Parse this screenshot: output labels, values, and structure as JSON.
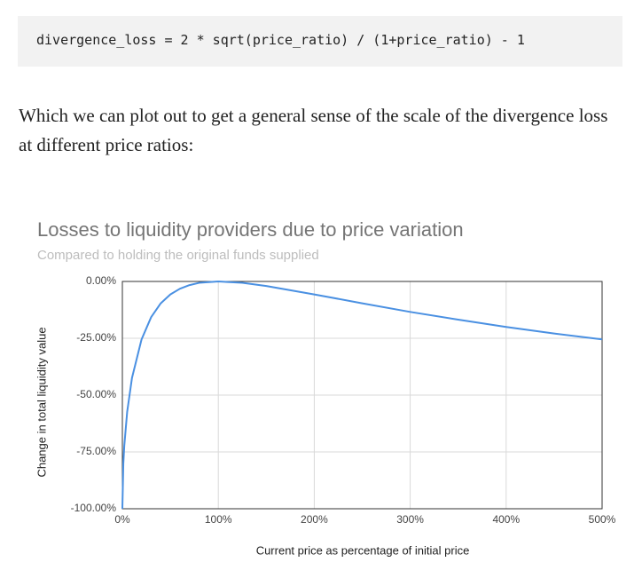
{
  "code": "divergence_loss = 2 * sqrt(price_ratio) / (1+price_ratio) - 1",
  "paragraph": "Which we can plot out to get a general sense of the scale of the divergence loss at different price ratios:",
  "chart_data": {
    "type": "line",
    "title": "Losses to liquidity providers due to price variation",
    "subtitle": "Compared to holding the original funds supplied",
    "x_label": "Current price as percentage of initial price",
    "y_label": "Change in total liquidity value",
    "x": [
      0,
      1,
      2,
      5,
      10,
      20,
      30,
      40,
      50,
      60,
      70,
      80,
      100,
      125,
      150,
      200,
      250,
      300,
      350,
      400,
      450,
      500
    ],
    "values": [
      -100,
      -80.2,
      -72.3,
      -57.4,
      -42.5,
      -25.5,
      -15.7,
      -9.6,
      -5.7,
      -3.2,
      -1.6,
      -0.6,
      0,
      -0.6,
      -2.0,
      -5.7,
      -9.6,
      -13.4,
      -16.8,
      -20,
      -22.9,
      -25.5
    ],
    "color": "#4a90e2",
    "xlim": [
      0,
      500
    ],
    "xticks": [
      {
        "value": 0,
        "label": "0%"
      },
      {
        "value": 100,
        "label": "100%"
      },
      {
        "value": 200,
        "label": "200%"
      },
      {
        "value": 300,
        "label": "300%"
      },
      {
        "value": 400,
        "label": "400%"
      },
      {
        "value": 500,
        "label": "500%"
      }
    ],
    "ylim": [
      -100,
      0
    ],
    "yticks": [
      {
        "value": -100,
        "label": "-100.00%"
      },
      {
        "value": -75,
        "label": "-75.00%"
      },
      {
        "value": -50,
        "label": "-50.00%"
      },
      {
        "value": -25,
        "label": "-25.00%"
      },
      {
        "value": 0,
        "label": "0.00%"
      }
    ],
    "grid": true
  }
}
